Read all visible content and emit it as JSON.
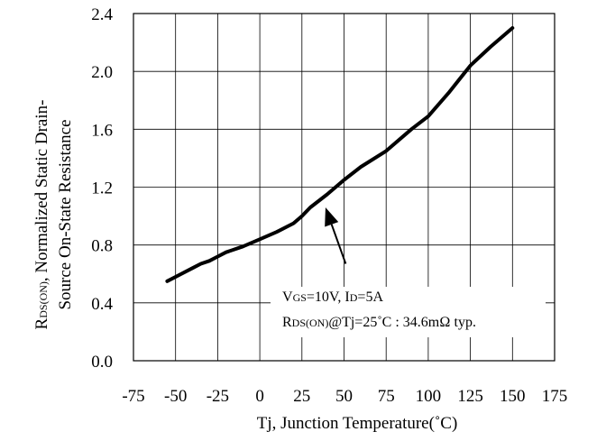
{
  "chart_data": {
    "type": "line",
    "title": "",
    "xlabel": "Tj, Junction Temperature(˚C)",
    "ylabel_line1": "R",
    "ylabel_line1_sub": "DS(ON)",
    "ylabel_line1_rest": ", Normalized Static Drain-",
    "ylabel_line2": "Source On-State Resistance",
    "xlim": [
      -75,
      175
    ],
    "ylim": [
      0.0,
      2.4
    ],
    "x_ticks": [
      "-75",
      "-50",
      "-25",
      "0",
      "25",
      "50",
      "75",
      "100",
      "125",
      "150",
      "175"
    ],
    "y_ticks": [
      "0.0",
      "0.4",
      "0.8",
      "1.2",
      "1.6",
      "2.0",
      "2.4"
    ],
    "grid": true,
    "series": [
      {
        "color": "#000000",
        "x": [
          -55,
          -50,
          -40,
          -35,
          -30,
          -25,
          -20,
          -10,
          0,
          10,
          20,
          25,
          30,
          40,
          50,
          60,
          75,
          90,
          100,
          112,
          125,
          137,
          150
        ],
        "y": [
          0.55,
          0.58,
          0.64,
          0.67,
          0.69,
          0.72,
          0.75,
          0.79,
          0.84,
          0.89,
          0.95,
          1.0,
          1.06,
          1.15,
          1.25,
          1.34,
          1.45,
          1.6,
          1.69,
          1.85,
          2.04,
          2.17,
          2.3
        ]
      }
    ],
    "annotation": {
      "line1_a": "V",
      "line1_a_sub": "GS",
      "line1_b": "=10V, I",
      "line1_b_sub": "D",
      "line1_c": "=5A",
      "line2_a": "R",
      "line2_a_sub": "DS(ON)",
      "line2_b": "@Tj=25˚C : 34.6mΩ typ.",
      "arrow_from": [
        51,
        0.67
      ],
      "arrow_to": [
        39,
        1.06
      ]
    }
  }
}
